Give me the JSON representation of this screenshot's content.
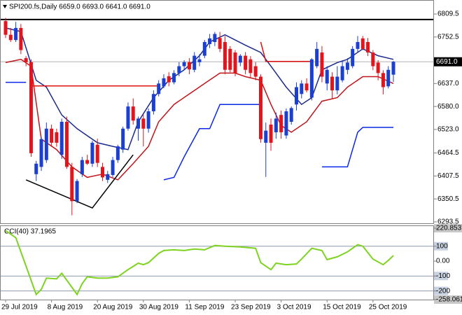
{
  "chart_data": [
    {
      "type": "candlestick",
      "title": "SPI200.fs,Daily  6659.0 6693.0 6641.0 6691.0",
      "categories": [
        "29 Jul 2019",
        null,
        null,
        null,
        null,
        null,
        null,
        null,
        null,
        "8 Aug 2019",
        null,
        null,
        null,
        null,
        null,
        null,
        null,
        null,
        "20 Aug 2019",
        null,
        null,
        null,
        null,
        null,
        null,
        null,
        null,
        "30 Aug 2019",
        null,
        null,
        null,
        null,
        null,
        null,
        null,
        null,
        "11 Sep 2019",
        null,
        null,
        null,
        null,
        null,
        null,
        null,
        null,
        "23 Sep 2019",
        null,
        null,
        null,
        null,
        null,
        null,
        null,
        null,
        "3 Oct 2019",
        null,
        null,
        null,
        null,
        null,
        null,
        null,
        null,
        "15 Oct 2019",
        null,
        null,
        null,
        null,
        null,
        null,
        null,
        null,
        "25 Oct 2019",
        null,
        null,
        null,
        null
      ],
      "open": [
        6792,
        6758,
        6745,
        6775,
        6700,
        6690,
        6412,
        6430,
        6447,
        6525,
        6516,
        6460,
        6542,
        6430,
        6345,
        6412,
        6447,
        6438,
        6485,
        6430,
        6398,
        6410,
        6447,
        6473,
        6525,
        6580,
        6525,
        6550,
        6525,
        6568,
        6611,
        6630,
        6655,
        6640,
        6663,
        6680,
        6690,
        6671,
        6690,
        6706,
        6735,
        6740,
        6750,
        6740,
        6723,
        6714,
        6689,
        6706,
        6697,
        6680,
        6654,
        6490,
        6535,
        6516,
        6559,
        6508,
        6542,
        6585,
        6611,
        6637,
        6602,
        6680,
        6714,
        6637,
        6654,
        6620,
        6645,
        6671,
        6680,
        6723,
        6749,
        6740,
        6714,
        6689,
        6663,
        6630,
        6659
      ],
      "high": [
        6800,
        6775,
        6790,
        6785,
        6705,
        6697,
        6445,
        6505,
        6540,
        6535,
        6525,
        6550,
        6555,
        6440,
        6400,
        6455,
        6460,
        6495,
        6500,
        6440,
        6420,
        6455,
        6485,
        6530,
        6590,
        6600,
        6555,
        6560,
        6575,
        6620,
        6645,
        6660,
        6665,
        6670,
        6690,
        6695,
        6700,
        6715,
        6710,
        6745,
        6760,
        6765,
        6765,
        6755,
        6730,
        6720,
        6710,
        6715,
        6705,
        6690,
        6660,
        6540,
        6550,
        6565,
        6570,
        6575,
        6580,
        6640,
        6645,
        6650,
        6700,
        6740,
        6730,
        6680,
        6665,
        6680,
        6695,
        6700,
        6730,
        6755,
        6755,
        6750,
        6720,
        6695,
        6670,
        6680,
        6693
      ],
      "low": [
        6750,
        6740,
        6740,
        6710,
        6680,
        6455,
        6395,
        6420,
        6440,
        6480,
        6480,
        6450,
        6425,
        6310,
        6340,
        6405,
        6435,
        6430,
        6430,
        6395,
        6390,
        6405,
        6440,
        6465,
        6520,
        6535,
        6495,
        6481,
        6515,
        6560,
        6605,
        6625,
        6630,
        6635,
        6655,
        6670,
        6660,
        6665,
        6680,
        6700,
        6725,
        6730,
        6715,
        6660,
        6665,
        6655,
        6680,
        6660,
        6650,
        6645,
        6490,
        6405,
        6470,
        6500,
        6500,
        6500,
        6535,
        6570,
        6600,
        6615,
        6595,
        6675,
        6640,
        6620,
        6600,
        6610,
        6640,
        6660,
        6675,
        6715,
        6720,
        6705,
        6670,
        6645,
        6610,
        6625,
        6641
      ],
      "close": [
        6758,
        6745,
        6775,
        6720,
        6690,
        6464,
        6438,
        6499,
        6525,
        6490,
        6490,
        6542,
        6430,
        6345,
        6395,
        6447,
        6438,
        6490,
        6440,
        6404,
        6412,
        6447,
        6481,
        6525,
        6580,
        6545,
        6550,
        6525,
        6568,
        6611,
        6637,
        6650,
        6640,
        6663,
        6680,
        6690,
        6672,
        6706,
        6697,
        6740,
        6749,
        6760,
        6723,
        6671,
        6671,
        6663,
        6706,
        6671,
        6663,
        6654,
        6499,
        6520,
        6490,
        6550,
        6516,
        6568,
        6576,
        6628,
        6637,
        6620,
        6697,
        6723,
        6654,
        6671,
        6620,
        6654,
        6680,
        6689,
        6723,
        6740,
        6723,
        6714,
        6680,
        6663,
        6628,
        6671,
        6691
      ],
      "up_color": "#1a3fd1",
      "down_color": "#e3141c",
      "ylim": [
        6290,
        6840
      ],
      "yticks": [
        6809.5,
        6752.5,
        {
          "value": 6637,
          "label": "6637.0"
        },
        {
          "value": 6580,
          "label": "6580.0"
        },
        {
          "value": 6523,
          "label": "6523.0"
        },
        6464.5,
        6407.5,
        6350.5,
        6293.5
      ],
      "last_price": {
        "value": 6691,
        "label": "6691.0"
      },
      "hlines": [
        {
          "value": 6796,
          "color": "#000000"
        }
      ],
      "overlays": [
        {
          "color": "#1c2a8c",
          "x": [
            0,
            3,
            6,
            8,
            11,
            14,
            18,
            21,
            24,
            26,
            29,
            32,
            35,
            38,
            40,
            43,
            47,
            50,
            52,
            55,
            58,
            60,
            62,
            65,
            67,
            70,
            73,
            76
          ],
          "values": [
            6775,
            6766,
            6645,
            6628,
            6559,
            6525,
            6490,
            6481,
            6473,
            6542,
            6602,
            6645,
            6671,
            6706,
            6740,
            6758,
            6732,
            6714,
            6680,
            6628,
            6585,
            6602,
            6671,
            6689,
            6697,
            6723,
            6706,
            6697
          ]
        },
        {
          "color": "#c0141a",
          "x": [
            0,
            3,
            5,
            7,
            10,
            13,
            16,
            19,
            22,
            25,
            28,
            30,
            33,
            36,
            39,
            42,
            45,
            47,
            50,
            52,
            54,
            56,
            59,
            62,
            65,
            67,
            70,
            73,
            76
          ],
          "values": [
            6689,
            6697,
            6680,
            6499,
            6473,
            6430,
            6404,
            6412,
            6398,
            6438,
            6481,
            6542,
            6585,
            6611,
            6637,
            6663,
            6663,
            6654,
            6645,
            6585,
            6533,
            6516,
            6542,
            6593,
            6602,
            6628,
            6654,
            6654,
            6637
          ]
        },
        {
          "color": "#0a28e6",
          "x": [
            0,
            4
          ],
          "values": [
            6640,
            6640
          ]
        },
        {
          "color": "#0a28e6",
          "x": [
            31,
            33,
            35,
            38,
            40,
            42,
            50
          ],
          "values": [
            6398,
            6404,
            6455,
            6525,
            6525,
            6585,
            6585
          ]
        },
        {
          "color": "#0a28e6",
          "x": [
            62,
            67,
            69,
            70,
            76
          ],
          "values": [
            6430,
            6430,
            6516,
            6528,
            6528
          ]
        },
        {
          "color": "#e01010",
          "x": [
            5,
            30
          ],
          "values": [
            6631,
            6631
          ]
        },
        {
          "color": "#e01010",
          "x": [
            50,
            51,
            60
          ],
          "values": [
            6740,
            6692,
            6692
          ]
        },
        {
          "color": "#000000",
          "x": [
            4,
            17,
            25
          ],
          "values": [
            6398,
            6328,
            6460
          ]
        }
      ]
    },
    {
      "type": "line",
      "title": "CCI(40) 37.1965",
      "color": "#7ed321",
      "x": [
        0,
        2,
        4,
        6,
        7,
        8,
        10,
        11,
        13,
        14,
        15,
        16,
        18,
        20,
        22,
        24,
        26,
        27,
        28,
        30,
        31,
        33,
        35,
        37,
        39,
        41,
        43,
        46,
        49,
        50,
        52,
        53,
        55,
        57,
        58,
        60,
        62,
        63,
        65,
        67,
        69,
        70,
        72,
        74,
        75,
        76
      ],
      "values": [
        205,
        157,
        -33,
        -224,
        -190,
        -114,
        -119,
        -81,
        -176,
        -224,
        -152,
        -105,
        -114,
        -114,
        -105,
        -57,
        -14,
        -24,
        -10,
        52,
        71,
        76,
        71,
        81,
        76,
        105,
        100,
        95,
        86,
        -10,
        -57,
        -14,
        -24,
        -19,
        14,
        86,
        71,
        10,
        29,
        62,
        110,
        100,
        14,
        -24,
        5,
        37.1965
      ],
      "ylim": [
        -258.0618,
        220.8537
      ],
      "yticks": [
        220.8537,
        100,
        {
          "value": 0,
          "label": "0.00"
        },
        -100,
        -200,
        -258.0618
      ]
    }
  ]
}
